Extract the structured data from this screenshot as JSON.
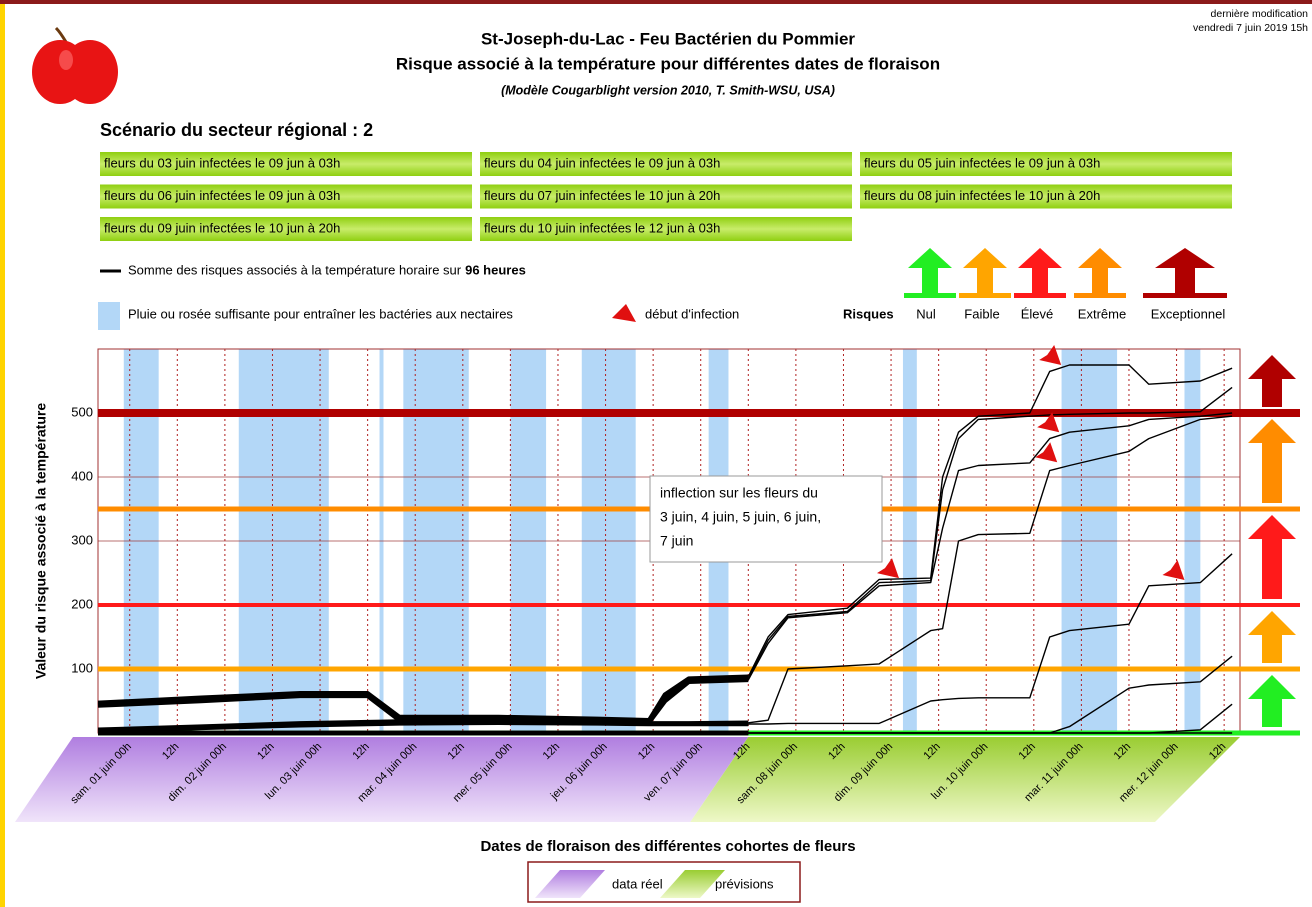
{
  "header": {
    "title": "St-Joseph-du-Lac - Feu Bactérien du Pommier",
    "subtitle": "Risque associé à la température pour différentes dates de floraison",
    "model": "(Modèle Cougarblight version 2010, T. Smith-WSU, USA)",
    "modified_label": "dernière modification",
    "modified_date": "vendredi 7 juin 2019 15h"
  },
  "scenario": "Scénario du secteur régional : 2",
  "legend": {
    "sum_text": "Somme des risques associés à la température horaire sur",
    "sum_hours": "96 heures",
    "rain": "Pluie ou rosée suffisante pour entraîner les bactéries aux nectaires",
    "infection": "début d'infection",
    "risks_title": "Risques"
  },
  "chart_data": {
    "type": "line",
    "y_label": "Valeur du risque associé à la température",
    "x_label": "Dates de floraison des différentes cohortes de fleurs",
    "xlim": [
      -8,
      280
    ],
    "ylim": [
      0,
      600
    ],
    "yticks": [
      100,
      200,
      300,
      400,
      500
    ],
    "xticks": [
      {
        "value": 0,
        "label": "sam. 01 juin 00h"
      },
      {
        "value": 12,
        "label": "12h"
      },
      {
        "value": 24,
        "label": "dim. 02 juin 00h"
      },
      {
        "value": 36,
        "label": "12h"
      },
      {
        "value": 48,
        "label": "lun. 03 juin 00h"
      },
      {
        "value": 60,
        "label": "12h"
      },
      {
        "value": 72,
        "label": "mar. 04 juin 00h"
      },
      {
        "value": 84,
        "label": "12h"
      },
      {
        "value": 96,
        "label": "mer. 05 juin 00h"
      },
      {
        "value": 108,
        "label": "12h"
      },
      {
        "value": 120,
        "label": "jeu. 06 juin 00h"
      },
      {
        "value": 132,
        "label": "12h"
      },
      {
        "value": 144,
        "label": "ven. 07 juin 00h"
      },
      {
        "value": 156,
        "label": "12h"
      },
      {
        "value": 168,
        "label": "sam. 08 juin 00h"
      },
      {
        "value": 180,
        "label": "12h"
      },
      {
        "value": 192,
        "label": "dim. 09 juin 00h"
      },
      {
        "value": 204,
        "label": "12h"
      },
      {
        "value": 216,
        "label": "lun. 10 juin 00h"
      },
      {
        "value": 228,
        "label": "12h"
      },
      {
        "value": 240,
        "label": "mar. 11 juin 00h"
      },
      {
        "value": 252,
        "label": "12h"
      },
      {
        "value": 264,
        "label": "mer. 12 juin 00h"
      },
      {
        "value": 276,
        "label": "12h"
      }
    ],
    "x": [
      -8,
      18,
      43,
      60,
      68,
      93,
      118,
      131,
      135,
      141,
      156,
      161,
      166,
      181,
      189,
      202,
      205,
      209,
      214,
      227,
      232,
      237,
      252,
      257,
      270,
      278
    ],
    "forecast_start": 156,
    "series": [
      {
        "name": "fleurs du 03 juin infectées le 09 jun à 03h",
        "color": "#000000",
        "values": [
          47,
          55,
          62,
          62,
          25,
          25,
          22,
          20,
          60,
          85,
          88,
          150,
          185,
          195,
          240,
          242,
          400,
          470,
          495,
          500,
          565,
          575,
          575,
          545,
          550,
          570
        ]
      },
      {
        "name": "fleurs du 04 juin infectées le 09 jun à 03h",
        "color": "#000000",
        "values": [
          45,
          52,
          60,
          60,
          22,
          22,
          20,
          18,
          55,
          82,
          85,
          145,
          182,
          190,
          235,
          238,
          380,
          460,
          490,
          495,
          497,
          498,
          500,
          500,
          502,
          540
        ]
      },
      {
        "name": "fleurs du 05 juin infectées le 09 jun à 03h",
        "color": "#000000",
        "values": [
          43,
          50,
          58,
          58,
          20,
          21,
          19,
          17,
          50,
          80,
          83,
          140,
          180,
          188,
          230,
          235,
          320,
          410,
          418,
          422,
          460,
          470,
          480,
          490,
          495,
          500
        ]
      },
      {
        "name": "fleurs du 06 juin infectées le 09 jun à 03h",
        "color": "#000000",
        "values": [
          5,
          10,
          15,
          17,
          18,
          18,
          17,
          15,
          15,
          15,
          16,
          20,
          100,
          105,
          108,
          160,
          163,
          300,
          310,
          312,
          410,
          418,
          440,
          460,
          490,
          495
        ]
      },
      {
        "name": "fleurs du 07 juin infectées le 10 jun à 20h",
        "color": "#000000",
        "values": [
          2,
          8,
          12,
          14,
          15,
          16,
          15,
          14,
          14,
          14,
          14,
          14,
          15,
          15,
          15,
          50,
          52,
          54,
          55,
          55,
          150,
          160,
          170,
          230,
          235,
          280
        ]
      },
      {
        "name": "fleurs du 08 juin infectées le 10 jun à 20h",
        "color": "#000000",
        "values": [
          0,
          0,
          0,
          0,
          0,
          0,
          0,
          0,
          0,
          0,
          0,
          0,
          0,
          0,
          0,
          0,
          0,
          0,
          0,
          0,
          0,
          10,
          70,
          75,
          80,
          120
        ]
      },
      {
        "name": "fleurs du 09 juin infectées le 10 jun à 20h",
        "color": "#000000",
        "values": [
          0,
          0,
          0,
          0,
          0,
          0,
          0,
          0,
          0,
          0,
          0,
          0,
          0,
          0,
          0,
          0,
          0,
          0,
          0,
          0,
          0,
          0,
          0,
          0,
          5,
          45
        ]
      },
      {
        "name": "fleurs du 10 juin infectées le 12 jun à 03h",
        "color": "#000000",
        "values": [
          0,
          0,
          0,
          0,
          0,
          0,
          0,
          0,
          0,
          0,
          0,
          0,
          0,
          0,
          0,
          0,
          0,
          0,
          0,
          0,
          0,
          0,
          0,
          0,
          0,
          0
        ]
      }
    ],
    "rain": {
      "color": "#b3d7f7",
      "periods": [
        [
          -1.5,
          7.3
        ],
        [
          27.5,
          50.2
        ],
        [
          63,
          64
        ],
        [
          69,
          85.5
        ],
        [
          96,
          105
        ],
        [
          114,
          127.6
        ],
        [
          146,
          151
        ],
        [
          195,
          198.5
        ],
        [
          235,
          249
        ],
        [
          266,
          270
        ]
      ]
    },
    "risk_levels": [
      {
        "name": "Nul",
        "value": 0,
        "color": "#22ee22"
      },
      {
        "name": "Faible",
        "value": 100,
        "color": "#ffa500"
      },
      {
        "name": "Élevé",
        "value": 200,
        "color": "#ff1a1a"
      },
      {
        "name": "Extrême",
        "value": 350,
        "color": "#ff8c00"
      },
      {
        "name": "Exceptionnel",
        "value": 500,
        "color": "#b00000"
      }
    ],
    "infections": {
      "x": [
        194,
        234.9,
        234.4,
        233.9,
        266
      ],
      "y": [
        242,
        575,
        470,
        423,
        239
      ]
    },
    "annotation": [
      "inflection sur les fleurs du",
      "3 juin, 4 juin, 5 juin, 6 juin,",
      "7 juin"
    ],
    "real_label": "data réel",
    "forecast_label": "prévisions",
    "real_color": "#b07ee0",
    "forecast_color": "#9acd32"
  }
}
